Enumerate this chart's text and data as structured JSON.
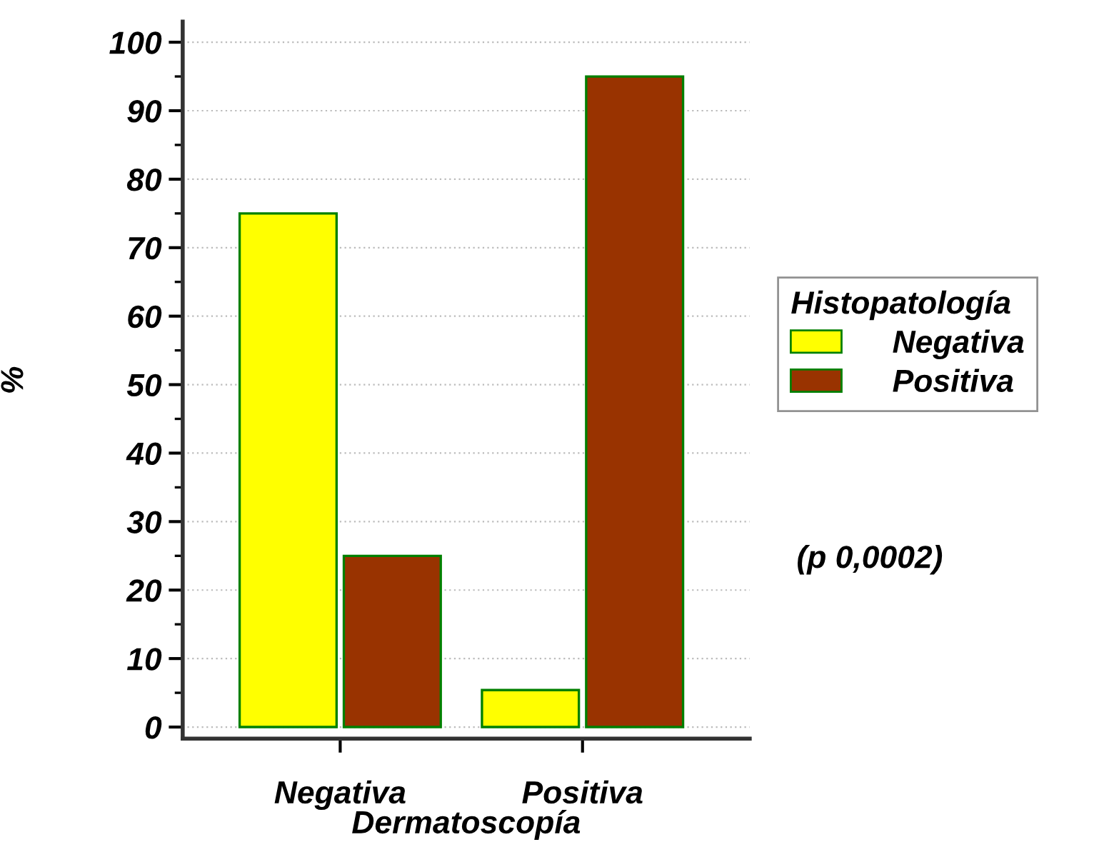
{
  "chart_data": {
    "type": "bar",
    "xlabel": "Dermatoscopía",
    "ylabel": "%",
    "legend_title": "Histopatología",
    "categories": [
      "Negativa",
      "Positiva"
    ],
    "series": [
      {
        "name": "Negativa",
        "color": "#ffff00",
        "values": [
          75,
          5.4
        ]
      },
      {
        "name": "Positiva",
        "color": "#993300",
        "values": [
          25,
          95
        ]
      }
    ],
    "ylim": [
      -1.7,
      103
    ],
    "yticks": [
      0,
      {
        "value": 5,
        "label": null
      },
      10,
      {
        "value": 15,
        "label": null
      },
      20,
      {
        "value": 25,
        "label": null
      },
      30,
      {
        "value": 35,
        "label": null
      },
      40,
      {
        "value": 45,
        "label": null
      },
      50,
      {
        "value": 55,
        "label": null
      },
      60,
      {
        "value": 65,
        "label": null
      },
      70,
      {
        "value": 75,
        "label": null
      },
      80,
      {
        "value": 85,
        "label": null
      },
      90,
      {
        "value": 95,
        "label": null
      },
      100
    ],
    "grid": "y",
    "legend": "right",
    "annotations": [
      "(p 0,0002)"
    ]
  }
}
